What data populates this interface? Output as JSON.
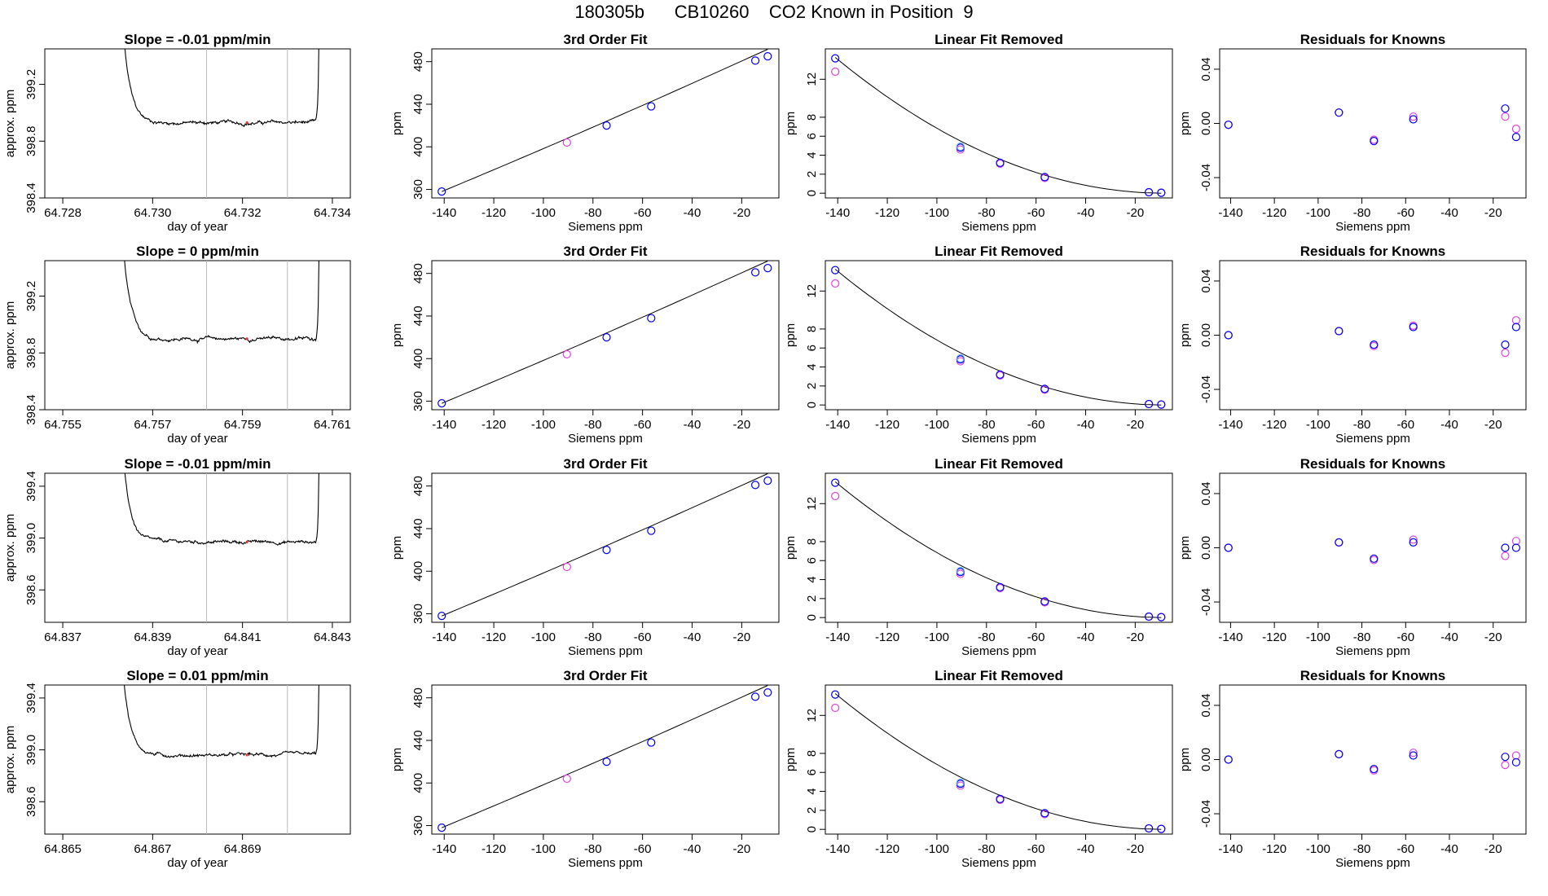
{
  "title": "180305b      CB10260    CO2 Known in Position  9",
  "colors": {
    "line": "#000000",
    "vline": "#bbbbbb",
    "blue": "#0000ee",
    "magenta": "#dd44dd",
    "cyan": "#55aaee",
    "red": "#ee3333"
  },
  "rows": [
    {
      "timeseries": {
        "title": "Slope =  -0.01  ppm/min",
        "xlabel": "day of year",
        "ylabel": "approx. ppm",
        "xlim": [
          64.7276,
          64.7344
        ],
        "ylim": [
          398.4,
          399.45
        ],
        "xticks": [
          64.728,
          64.73,
          64.732,
          64.734
        ],
        "xticklabels": [
          "64.728",
          "64.730",
          "64.732",
          "64.734"
        ],
        "yticks": [
          398.4,
          398.8,
          399.2
        ],
        "yticklabels": [
          "398.4",
          "398.8",
          "399.2"
        ],
        "t_start": 64.7292,
        "t_end": 64.7338,
        "plateau": 398.93,
        "vlines": [
          64.7312,
          64.733
        ],
        "marker_x": 64.7321
      },
      "fit": {
        "title": "3rd Order Fit",
        "xlabel": "Siemens ppm",
        "ylabel": "ppm",
        "x": [
          -141,
          -90.5,
          -74.5,
          -56.5,
          -14.5,
          -9.5
        ],
        "y": [
          358,
          404,
          420,
          438,
          481,
          485
        ],
        "colors": [
          "blue",
          "magenta",
          "blue",
          "blue",
          "blue",
          "blue"
        ]
      },
      "linear": {
        "title": "Linear Fit Removed",
        "xlabel": "Siemens ppm",
        "ylabel": "ppm",
        "blue": [
          [
            -141,
            14.2
          ],
          [
            -90.5,
            4.8
          ],
          [
            -74.5,
            3.2
          ],
          [
            -56.5,
            1.7
          ],
          [
            -14.5,
            0.1
          ],
          [
            -9.5,
            0.05
          ]
        ],
        "magenta": [
          [
            -141,
            12.8
          ],
          [
            -90.5,
            4.6
          ],
          [
            -74.5,
            3.1
          ],
          [
            -56.5,
            1.6
          ],
          [
            -14.5,
            0.1
          ],
          [
            -9.5,
            0.05
          ]
        ]
      },
      "residuals": {
        "title": "Residuals for Knowns",
        "xlabel": "Siemens ppm",
        "ylabel": "ppm",
        "blue": [
          [
            -141,
            -0.001
          ],
          [
            -90.5,
            0.008
          ],
          [
            -74.5,
            -0.013
          ],
          [
            -56.5,
            0.003
          ],
          [
            -14.5,
            0.011
          ],
          [
            -9.5,
            -0.01
          ]
        ],
        "magenta": [
          [
            -141,
            -0.001
          ],
          [
            -90.5,
            0.008
          ],
          [
            -74.5,
            -0.012
          ],
          [
            -56.5,
            0.005
          ],
          [
            -14.5,
            0.005
          ],
          [
            -9.5,
            -0.004
          ]
        ]
      }
    },
    {
      "timeseries": {
        "title": "Slope =  0  ppm/min",
        "xlabel": "day of year",
        "ylabel": "approx. ppm",
        "xlim": [
          64.7546,
          64.7614
        ],
        "ylim": [
          398.4,
          399.45
        ],
        "xticks": [
          64.755,
          64.757,
          64.759,
          64.761
        ],
        "xticklabels": [
          "64.755",
          "64.757",
          "64.759",
          "64.761"
        ],
        "yticks": [
          398.4,
          398.8,
          399.2
        ],
        "yticklabels": [
          "398.4",
          "398.8",
          "399.2"
        ],
        "t_start": 64.7562,
        "t_end": 64.7608,
        "plateau": 398.9,
        "vlines": [
          64.7582,
          64.76
        ],
        "marker_x": 64.7591
      },
      "fit": {
        "title": "3rd Order Fit",
        "xlabel": "Siemens ppm",
        "ylabel": "ppm",
        "x": [
          -141,
          -90.5,
          -74.5,
          -56.5,
          -14.5,
          -9.5
        ],
        "y": [
          358,
          404,
          420,
          438,
          481,
          485
        ],
        "colors": [
          "blue",
          "magenta",
          "blue",
          "blue",
          "blue",
          "blue"
        ]
      },
      "linear": {
        "title": "Linear Fit Removed",
        "xlabel": "Siemens ppm",
        "ylabel": "ppm",
        "blue": [
          [
            -141,
            14.2
          ],
          [
            -90.5,
            4.8
          ],
          [
            -74.5,
            3.2
          ],
          [
            -56.5,
            1.7
          ],
          [
            -14.5,
            0.1
          ],
          [
            -9.5,
            0.05
          ]
        ],
        "magenta": [
          [
            -141,
            12.8
          ],
          [
            -90.5,
            4.6
          ],
          [
            -74.5,
            3.1
          ],
          [
            -56.5,
            1.6
          ],
          [
            -14.5,
            0.1
          ],
          [
            -9.5,
            0.05
          ]
        ]
      },
      "residuals": {
        "title": "Residuals for Knowns",
        "xlabel": "Siemens ppm",
        "ylabel": "ppm",
        "blue": [
          [
            -141,
            0.0
          ],
          [
            -90.5,
            0.003
          ],
          [
            -74.5,
            -0.007
          ],
          [
            -56.5,
            0.006
          ],
          [
            -14.5,
            -0.007
          ],
          [
            -9.5,
            0.006
          ]
        ],
        "magenta": [
          [
            -141,
            0.0
          ],
          [
            -90.5,
            0.003
          ],
          [
            -74.5,
            -0.008
          ],
          [
            -56.5,
            0.007
          ],
          [
            -14.5,
            -0.013
          ],
          [
            -9.5,
            0.011
          ]
        ]
      }
    },
    {
      "timeseries": {
        "title": "Slope =  -0.01  ppm/min",
        "xlabel": "day of year",
        "ylabel": "approx. ppm",
        "xlim": [
          64.8366,
          64.8434
        ],
        "ylim": [
          398.35,
          399.5
        ],
        "xticks": [
          64.837,
          64.839,
          64.841,
          64.843
        ],
        "xticklabels": [
          "64.837",
          "64.839",
          "64.841",
          "64.843"
        ],
        "yticks": [
          398.6,
          399.0,
          399.4
        ],
        "yticklabels": [
          "398.6",
          "399.0",
          "399.4"
        ],
        "t_start": 64.8382,
        "t_end": 64.8428,
        "plateau": 398.97,
        "vlines": [
          64.8402,
          64.842
        ],
        "marker_x": 64.8411
      },
      "fit": {
        "title": "3rd Order Fit",
        "xlabel": "Siemens ppm",
        "ylabel": "ppm",
        "x": [
          -141,
          -90.5,
          -74.5,
          -56.5,
          -14.5,
          -9.5
        ],
        "y": [
          358,
          404,
          420,
          438,
          481,
          485
        ],
        "colors": [
          "blue",
          "magenta",
          "blue",
          "blue",
          "blue",
          "blue"
        ]
      },
      "linear": {
        "title": "Linear Fit Removed",
        "xlabel": "Siemens ppm",
        "ylabel": "ppm",
        "blue": [
          [
            -141,
            14.2
          ],
          [
            -90.5,
            4.8
          ],
          [
            -74.5,
            3.2
          ],
          [
            -56.5,
            1.7
          ],
          [
            -14.5,
            0.1
          ],
          [
            -9.5,
            0.05
          ]
        ],
        "magenta": [
          [
            -141,
            12.8
          ],
          [
            -90.5,
            4.6
          ],
          [
            -74.5,
            3.1
          ],
          [
            -56.5,
            1.6
          ],
          [
            -14.5,
            0.1
          ],
          [
            -9.5,
            0.05
          ]
        ]
      },
      "residuals": {
        "title": "Residuals for Knowns",
        "xlabel": "Siemens ppm",
        "ylabel": "ppm",
        "blue": [
          [
            -141,
            0.0
          ],
          [
            -90.5,
            0.004
          ],
          [
            -74.5,
            -0.008
          ],
          [
            -56.5,
            0.004
          ],
          [
            -14.5,
            0.0
          ],
          [
            -9.5,
            0.0
          ]
        ],
        "magenta": [
          [
            -141,
            0.0
          ],
          [
            -90.5,
            0.004
          ],
          [
            -74.5,
            -0.009
          ],
          [
            -56.5,
            0.006
          ],
          [
            -14.5,
            -0.006
          ],
          [
            -9.5,
            0.005
          ]
        ]
      }
    },
    {
      "timeseries": {
        "title": "Slope =  0.01  ppm/min",
        "xlabel": "day of year",
        "ylabel": "approx. ppm",
        "xlim": [
          64.8646,
          64.8714
        ],
        "ylim": [
          398.35,
          399.5
        ],
        "xticks": [
          64.865,
          64.867,
          64.869
        ],
        "xticklabels": [
          "64.865",
          "64.867",
          "64.869"
        ],
        "yticks": [
          398.6,
          399.0,
          399.4
        ],
        "yticklabels": [
          "398.6",
          "399.0",
          "399.4"
        ],
        "t_start": 64.8662,
        "t_end": 64.8708,
        "plateau": 398.96,
        "vlines": [
          64.8682,
          64.87
        ],
        "marker_x": 64.8691
      },
      "fit": {
        "title": "3rd Order Fit",
        "xlabel": "Siemens ppm",
        "ylabel": "ppm",
        "x": [
          -141,
          -90.5,
          -74.5,
          -56.5,
          -14.5,
          -9.5
        ],
        "y": [
          358,
          404,
          420,
          438,
          481,
          485
        ],
        "colors": [
          "blue",
          "magenta",
          "blue",
          "blue",
          "blue",
          "blue"
        ]
      },
      "linear": {
        "title": "Linear Fit Removed",
        "xlabel": "Siemens ppm",
        "ylabel": "ppm",
        "blue": [
          [
            -141,
            14.2
          ],
          [
            -90.5,
            4.8
          ],
          [
            -74.5,
            3.2
          ],
          [
            -56.5,
            1.7
          ],
          [
            -14.5,
            0.1
          ],
          [
            -9.5,
            0.05
          ]
        ],
        "magenta": [
          [
            -141,
            12.8
          ],
          [
            -90.5,
            4.6
          ],
          [
            -74.5,
            3.1
          ],
          [
            -56.5,
            1.6
          ],
          [
            -14.5,
            0.1
          ],
          [
            -9.5,
            0.05
          ]
        ]
      },
      "residuals": {
        "title": "Residuals for Knowns",
        "xlabel": "Siemens ppm",
        "ylabel": "ppm",
        "blue": [
          [
            -141,
            0.0
          ],
          [
            -90.5,
            0.004
          ],
          [
            -74.5,
            -0.007
          ],
          [
            -56.5,
            0.003
          ],
          [
            -14.5,
            0.002
          ],
          [
            -9.5,
            -0.002
          ]
        ],
        "magenta": [
          [
            -141,
            0.0
          ],
          [
            -90.5,
            0.004
          ],
          [
            -74.5,
            -0.008
          ],
          [
            -56.5,
            0.005
          ],
          [
            -14.5,
            -0.004
          ],
          [
            -9.5,
            0.003
          ]
        ]
      }
    }
  ],
  "chart_data": [
    {
      "type": "line",
      "panels": "row 1-4 column 1",
      "title": "Slope =  -0.01  ppm/min",
      "xlabel": "day of year",
      "ylabel": "approx. ppm"
    },
    {
      "type": "scatter",
      "panels": "column 2",
      "title": "3rd Order Fit",
      "xlabel": "Siemens ppm",
      "ylabel": "ppm",
      "x": [
        -141,
        -90.5,
        -74.5,
        -56.5,
        -14.5,
        -9.5
      ],
      "y": [
        358,
        404,
        420,
        438,
        481,
        485
      ],
      "xlim": [
        -145,
        -5
      ],
      "ylim": [
        352,
        492
      ],
      "xticks": [
        -140,
        -120,
        -100,
        -80,
        -60,
        -40,
        -20
      ],
      "yticks": [
        360,
        400,
        440,
        480
      ]
    },
    {
      "type": "scatter",
      "panels": "column 3",
      "title": "Linear Fit Removed",
      "xlabel": "Siemens ppm",
      "ylabel": "ppm",
      "xlim": [
        -145,
        -5
      ],
      "ylim": [
        -0.5,
        15.2
      ],
      "xticks": [
        -140,
        -120,
        -100,
        -80,
        -60,
        -40,
        -20
      ],
      "yticks": [
        0,
        2,
        4,
        6,
        8,
        12
      ]
    },
    {
      "type": "scatter",
      "panels": "column 4",
      "title": "Residuals for Knowns",
      "xlabel": "Siemens ppm",
      "ylabel": "ppm",
      "xlim": [
        -145,
        -5
      ],
      "ylim": [
        -0.055,
        0.055
      ],
      "xticks": [
        -140,
        -120,
        -100,
        -80,
        -60,
        -40,
        -20
      ],
      "yticks": [
        -0.04,
        0.0,
        0.04
      ]
    }
  ]
}
